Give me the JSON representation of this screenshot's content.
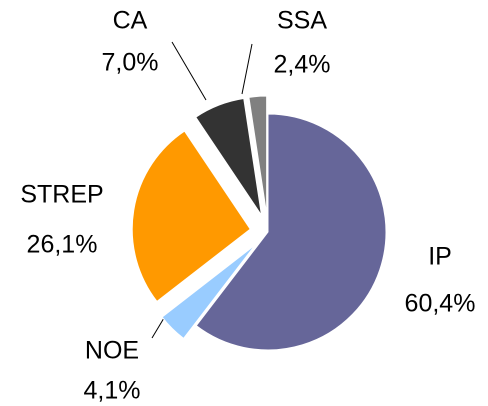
{
  "chart_data": {
    "type": "pie",
    "categories": [
      "IP",
      "NOE",
      "STREP",
      "CA",
      "SSA"
    ],
    "values": [
      60.4,
      4.1,
      26.1,
      7.0,
      2.4
    ],
    "value_labels": [
      "60,4%",
      "4,1%",
      "26,1%",
      "7,0%",
      "2,4%"
    ],
    "colors": [
      "#666699",
      "#99ccff",
      "#ff9900",
      "#333333",
      "#808080"
    ]
  }
}
